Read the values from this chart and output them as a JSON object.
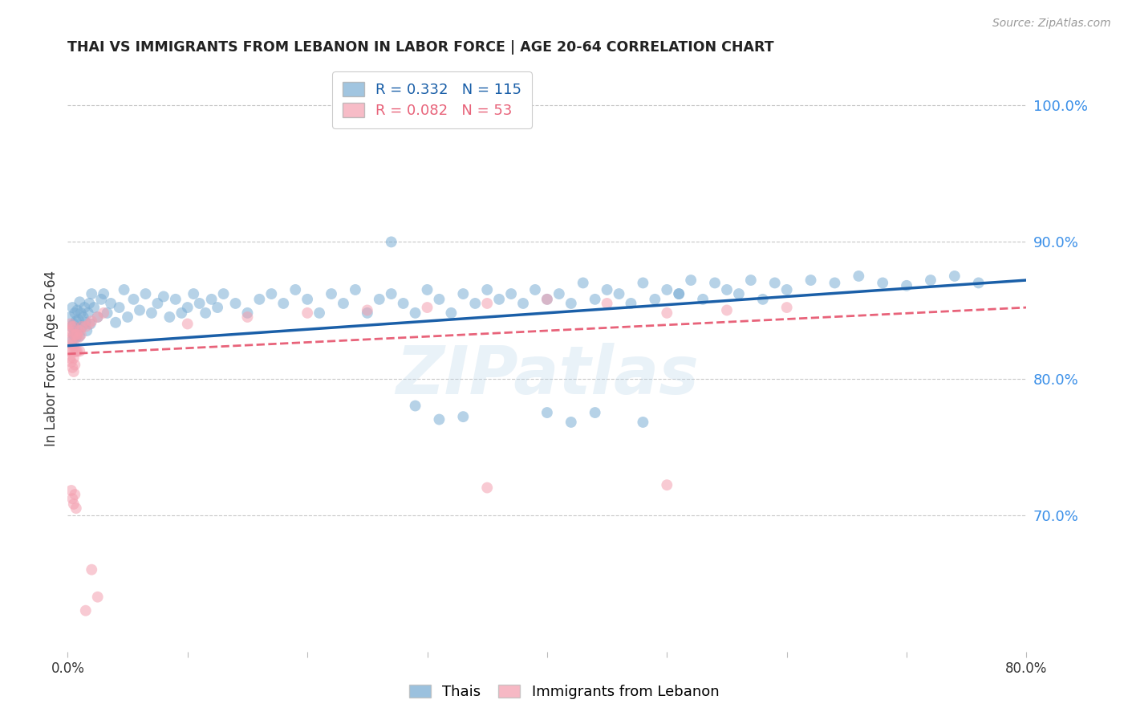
{
  "title": "THAI VS IMMIGRANTS FROM LEBANON IN LABOR FORCE | AGE 20-64 CORRELATION CHART",
  "source": "Source: ZipAtlas.com",
  "ylabel": "In Labor Force | Age 20-64",
  "legend_labels": [
    "Thais",
    "Immigrants from Lebanon"
  ],
  "r_thai": 0.332,
  "n_thai": 115,
  "r_lebanon": 0.082,
  "n_lebanon": 53,
  "blue_color": "#7aadd4",
  "pink_color": "#f4a0b0",
  "blue_line_color": "#1a5fa8",
  "pink_line_color": "#e8637a",
  "watermark": "ZIPatlas",
  "xlim": [
    0.0,
    0.8
  ],
  "ylim": [
    0.6,
    1.03
  ],
  "x_ticks": [
    0.0,
    0.1,
    0.2,
    0.3,
    0.4,
    0.5,
    0.6,
    0.7,
    0.8
  ],
  "x_tick_labels": [
    "0.0%",
    "",
    "",
    "",
    "",
    "",
    "",
    "",
    "80.0%"
  ],
  "y_ticks_right": [
    0.7,
    0.8,
    0.9,
    1.0
  ],
  "marker_size": 100,
  "thai_line_x": [
    0.0,
    0.8
  ],
  "thai_line_y": [
    0.824,
    0.872
  ],
  "lebanon_line_x": [
    0.0,
    0.8
  ],
  "lebanon_line_y": [
    0.818,
    0.852
  ],
  "thai_x": [
    0.002,
    0.003,
    0.004,
    0.004,
    0.005,
    0.005,
    0.006,
    0.006,
    0.007,
    0.007,
    0.008,
    0.008,
    0.009,
    0.01,
    0.01,
    0.011,
    0.012,
    0.013,
    0.014,
    0.015,
    0.016,
    0.017,
    0.018,
    0.019,
    0.02,
    0.022,
    0.025,
    0.028,
    0.03,
    0.033,
    0.036,
    0.04,
    0.043,
    0.047,
    0.05,
    0.055,
    0.06,
    0.065,
    0.07,
    0.075,
    0.08,
    0.085,
    0.09,
    0.095,
    0.1,
    0.105,
    0.11,
    0.115,
    0.12,
    0.125,
    0.13,
    0.14,
    0.15,
    0.16,
    0.17,
    0.18,
    0.19,
    0.2,
    0.21,
    0.22,
    0.23,
    0.24,
    0.25,
    0.26,
    0.27,
    0.28,
    0.29,
    0.3,
    0.31,
    0.32,
    0.33,
    0.34,
    0.35,
    0.36,
    0.37,
    0.38,
    0.39,
    0.4,
    0.41,
    0.42,
    0.43,
    0.44,
    0.45,
    0.46,
    0.47,
    0.48,
    0.49,
    0.5,
    0.51,
    0.52,
    0.53,
    0.54,
    0.55,
    0.56,
    0.57,
    0.58,
    0.59,
    0.6,
    0.62,
    0.64,
    0.66,
    0.68,
    0.7,
    0.72,
    0.74,
    0.76,
    0.4,
    0.42,
    0.27,
    0.29,
    0.31,
    0.33,
    0.44,
    0.48,
    0.51
  ],
  "thai_y": [
    0.845,
    0.838,
    0.852,
    0.828,
    0.84,
    0.832,
    0.848,
    0.835,
    0.842,
    0.83,
    0.85,
    0.837,
    0.843,
    0.856,
    0.831,
    0.848,
    0.838,
    0.845,
    0.852,
    0.841,
    0.835,
    0.848,
    0.855,
    0.84,
    0.862,
    0.852,
    0.845,
    0.858,
    0.862,
    0.848,
    0.855,
    0.841,
    0.852,
    0.865,
    0.845,
    0.858,
    0.85,
    0.862,
    0.848,
    0.855,
    0.86,
    0.845,
    0.858,
    0.848,
    0.852,
    0.862,
    0.855,
    0.848,
    0.858,
    0.852,
    0.862,
    0.855,
    0.848,
    0.858,
    0.862,
    0.855,
    0.865,
    0.858,
    0.848,
    0.862,
    0.855,
    0.865,
    0.848,
    0.858,
    0.862,
    0.855,
    0.848,
    0.865,
    0.858,
    0.848,
    0.862,
    0.855,
    0.865,
    0.858,
    0.862,
    0.855,
    0.865,
    0.858,
    0.862,
    0.855,
    0.87,
    0.858,
    0.865,
    0.862,
    0.855,
    0.87,
    0.858,
    0.865,
    0.862,
    0.872,
    0.858,
    0.87,
    0.865,
    0.862,
    0.872,
    0.858,
    0.87,
    0.865,
    0.872,
    0.87,
    0.875,
    0.87,
    0.868,
    0.872,
    0.875,
    0.87,
    0.775,
    0.768,
    0.9,
    0.78,
    0.77,
    0.772,
    0.775,
    0.768,
    0.862
  ],
  "lebanon_x": [
    0.001,
    0.001,
    0.002,
    0.002,
    0.002,
    0.003,
    0.003,
    0.003,
    0.004,
    0.004,
    0.004,
    0.005,
    0.005,
    0.005,
    0.005,
    0.006,
    0.006,
    0.006,
    0.007,
    0.007,
    0.008,
    0.008,
    0.009,
    0.01,
    0.01,
    0.011,
    0.012,
    0.015,
    0.018,
    0.02,
    0.025,
    0.03,
    0.1,
    0.15,
    0.2,
    0.25,
    0.3,
    0.35,
    0.4,
    0.45,
    0.5,
    0.55,
    0.6,
    0.003,
    0.004,
    0.005,
    0.006,
    0.007,
    0.35,
    0.5,
    0.02,
    0.025,
    0.015
  ],
  "lebanon_y": [
    0.835,
    0.82,
    0.84,
    0.828,
    0.815,
    0.838,
    0.825,
    0.812,
    0.832,
    0.82,
    0.808,
    0.838,
    0.825,
    0.815,
    0.805,
    0.832,
    0.82,
    0.81,
    0.832,
    0.82,
    0.832,
    0.82,
    0.83,
    0.835,
    0.82,
    0.832,
    0.838,
    0.838,
    0.84,
    0.842,
    0.845,
    0.848,
    0.84,
    0.845,
    0.848,
    0.85,
    0.852,
    0.855,
    0.858,
    0.855,
    0.848,
    0.85,
    0.852,
    0.718,
    0.712,
    0.708,
    0.715,
    0.705,
    0.72,
    0.722,
    0.66,
    0.64,
    0.63
  ]
}
